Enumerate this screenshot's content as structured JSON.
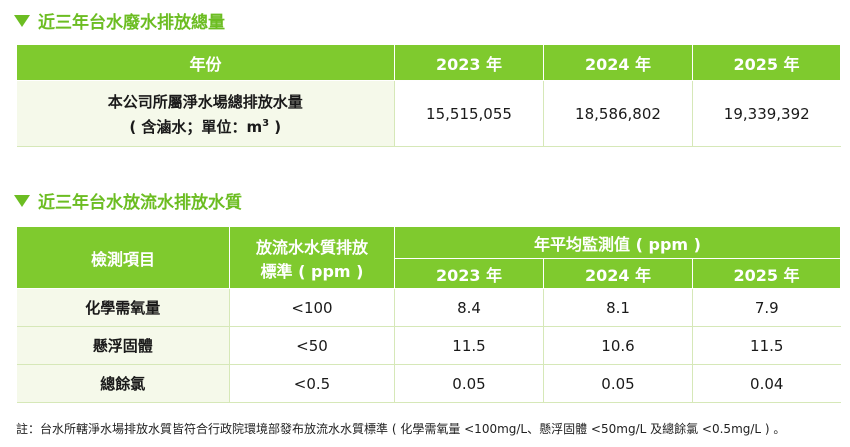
{
  "section1": {
    "title": "近三年台水廢水排放總量",
    "header": [
      "年份",
      "2023 年",
      "2024 年",
      "2025 年"
    ],
    "row_label_line1": "本公司所屬淨水場總排放水量",
    "row_label_line2": "( 含滷水；單位：m",
    "row_label_sup": "3",
    "row_label_end": " )",
    "values": [
      "15,515,055",
      "18,586,802",
      "19,339,392"
    ]
  },
  "section2": {
    "title": "近三年台水放流水排放水質",
    "col_item": "檢測項目",
    "col_standard_line1": "放流水水質排放",
    "col_standard_line2": "標準 ( ppm )",
    "col_avg": "年平均監測值 ( ppm )",
    "years": [
      "2023 年",
      "2024 年",
      "2025 年"
    ],
    "rows": [
      {
        "item": "化學需氧量",
        "standard": "<100",
        "values": [
          "8.4",
          "8.1",
          "7.9"
        ]
      },
      {
        "item": "懸浮固體",
        "standard": "<50",
        "values": [
          "11.5",
          "10.6",
          "11.5"
        ]
      },
      {
        "item": "總餘氯",
        "standard": "<0.5",
        "values": [
          "0.05",
          "0.05",
          "0.04"
        ]
      }
    ]
  },
  "note": "註：台水所轄淨水場排放水質皆符合行政院環境部發布放流水水質標準 ( 化學需氧量 <100mg/L、懸浮固體 <50mg/L 及總餘氯 <0.5mg/L ) 。",
  "colors": {
    "accent": "#7fca2e",
    "title": "#6cbd22",
    "row_bg": "#f5f9ea"
  }
}
